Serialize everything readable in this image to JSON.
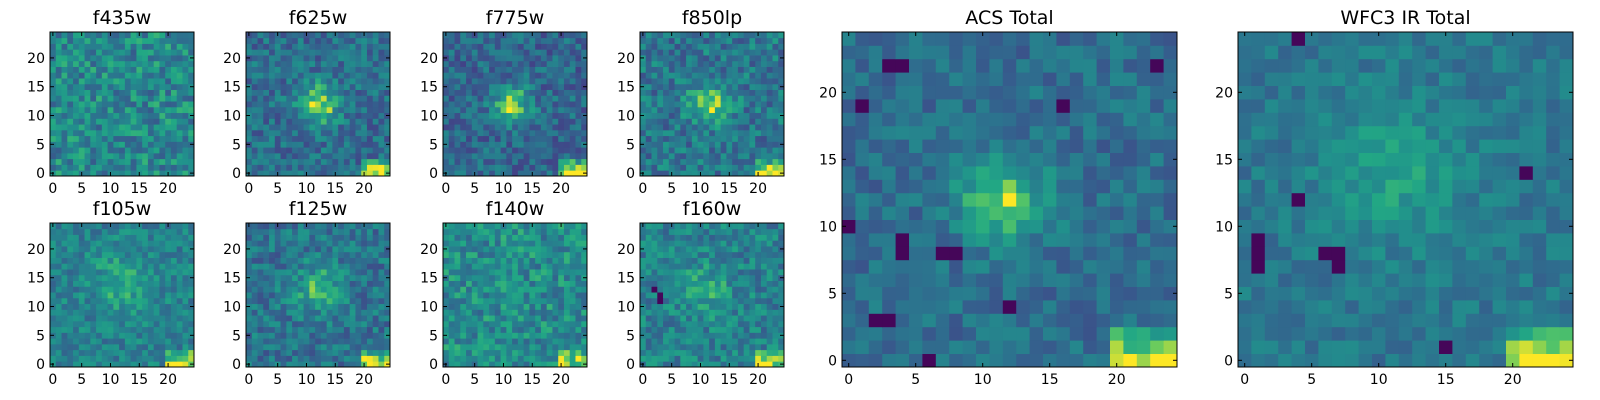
{
  "chart_data": [
    {
      "type": "heatmap",
      "title": "f435w",
      "xticks": [
        0,
        5,
        10,
        15,
        20
      ],
      "yticks": [
        0,
        5,
        10,
        15,
        20
      ],
      "xlim": [
        -0.5,
        24.5
      ],
      "ylim": [
        -0.5,
        24.5
      ],
      "grid_size": 25,
      "colormap": "viridis",
      "features": {
        "noise": 0.22,
        "base": 0.58,
        "blobs": [],
        "dark": [],
        "corner": 0
      }
    },
    {
      "type": "heatmap",
      "title": "f625w",
      "xticks": [
        0,
        5,
        10,
        15,
        20
      ],
      "yticks": [
        0,
        5,
        10,
        15,
        20
      ],
      "xlim": [
        -0.5,
        24.5
      ],
      "ylim": [
        -0.5,
        24.5
      ],
      "grid_size": 25,
      "colormap": "viridis",
      "features": {
        "noise": 0.18,
        "base": 0.45,
        "blobs": [
          [
            12,
            12,
            2.5,
            0.5
          ]
        ],
        "dark": [],
        "corner": 0.55
      }
    },
    {
      "type": "heatmap",
      "title": "f775w",
      "xticks": [
        0,
        5,
        10,
        15,
        20
      ],
      "yticks": [
        0,
        5,
        10,
        15,
        20
      ],
      "xlim": [
        -0.5,
        24.5
      ],
      "ylim": [
        -0.5,
        24.5
      ],
      "grid_size": 25,
      "colormap": "viridis",
      "features": {
        "noise": 0.18,
        "base": 0.42,
        "blobs": [
          [
            11.5,
            12,
            2.2,
            0.5
          ]
        ],
        "dark": [],
        "corner": 0.6
      }
    },
    {
      "type": "heatmap",
      "title": "f850lp",
      "xticks": [
        0,
        5,
        10,
        15,
        20
      ],
      "yticks": [
        0,
        5,
        10,
        15,
        20
      ],
      "xlim": [
        -0.5,
        24.5
      ],
      "ylim": [
        -0.5,
        24.5
      ],
      "grid_size": 25,
      "colormap": "viridis",
      "features": {
        "noise": 0.2,
        "base": 0.5,
        "blobs": [
          [
            11.5,
            12,
            2.5,
            0.35
          ]
        ],
        "dark": [],
        "corner": 0.5
      }
    },
    {
      "type": "heatmap",
      "title": "f105w",
      "xticks": [
        0,
        5,
        10,
        15,
        20
      ],
      "yticks": [
        0,
        5,
        10,
        15,
        20
      ],
      "xlim": [
        -0.5,
        24.5
      ],
      "ylim": [
        -0.5,
        24.5
      ],
      "grid_size": 25,
      "colormap": "viridis",
      "features": {
        "noise": 0.16,
        "base": 0.55,
        "blobs": [
          [
            12,
            14,
            3.5,
            0.2
          ]
        ],
        "dark": [],
        "corner": 0.45
      }
    },
    {
      "type": "heatmap",
      "title": "f125w",
      "xticks": [
        0,
        5,
        10,
        15,
        20
      ],
      "yticks": [
        0,
        5,
        10,
        15,
        20
      ],
      "xlim": [
        -0.5,
        24.5
      ],
      "ylim": [
        -0.5,
        24.5
      ],
      "grid_size": 25,
      "colormap": "viridis",
      "features": {
        "noise": 0.18,
        "base": 0.48,
        "blobs": [
          [
            12,
            13,
            3,
            0.3
          ]
        ],
        "dark": [],
        "corner": 0.5
      }
    },
    {
      "type": "heatmap",
      "title": "f140w",
      "xticks": [
        0,
        5,
        10,
        15,
        20
      ],
      "yticks": [
        0,
        5,
        10,
        15,
        20
      ],
      "xlim": [
        -0.5,
        24.5
      ],
      "ylim": [
        -0.5,
        24.5
      ],
      "grid_size": 25,
      "colormap": "viridis",
      "features": {
        "noise": 0.2,
        "base": 0.6,
        "blobs": [],
        "dark": [],
        "corner": 0.3
      }
    },
    {
      "type": "heatmap",
      "title": "f160w",
      "xticks": [
        0,
        5,
        10,
        15,
        20
      ],
      "yticks": [
        0,
        5,
        10,
        15,
        20
      ],
      "xlim": [
        -0.5,
        24.5
      ],
      "ylim": [
        -0.5,
        24.5
      ],
      "grid_size": 25,
      "colormap": "viridis",
      "features": {
        "noise": 0.18,
        "base": 0.55,
        "blobs": [
          [
            11,
            13,
            3,
            0.2
          ]
        ],
        "dark": [
          [
            2,
            13
          ],
          [
            3,
            12
          ],
          [
            3,
            11
          ]
        ],
        "corner": 0.4
      }
    },
    {
      "type": "heatmap",
      "title": "ACS Total",
      "xticks": [
        0,
        5,
        10,
        15,
        20
      ],
      "yticks": [
        0,
        5,
        10,
        15,
        20
      ],
      "xlim": [
        -0.5,
        24.5
      ],
      "ylim": [
        -0.5,
        24.5
      ],
      "grid_size": 25,
      "colormap": "viridis",
      "features": {
        "noise": 0.13,
        "base": 0.45,
        "blobs": [
          [
            11.5,
            12,
            2.3,
            0.45
          ]
        ],
        "dark": [
          [
            3,
            22
          ],
          [
            4,
            22
          ],
          [
            1,
            19
          ],
          [
            0,
            10
          ],
          [
            4,
            8
          ],
          [
            4,
            9
          ],
          [
            7,
            8
          ],
          [
            8,
            8
          ],
          [
            2,
            3
          ],
          [
            3,
            3
          ],
          [
            6,
            0
          ],
          [
            12,
            4
          ],
          [
            16,
            19
          ],
          [
            23,
            22
          ]
        ],
        "corner": 0.55
      }
    },
    {
      "type": "heatmap",
      "title": "WFC3 IR Total",
      "xticks": [
        0,
        5,
        10,
        15,
        20
      ],
      "yticks": [
        0,
        5,
        10,
        15,
        20
      ],
      "xlim": [
        -0.5,
        24.5
      ],
      "ylim": [
        -0.5,
        24.5
      ],
      "grid_size": 25,
      "colormap": "viridis",
      "features": {
        "noise": 0.11,
        "base": 0.5,
        "blobs": [
          [
            11,
            14,
            3.5,
            0.22
          ]
        ],
        "dark": [
          [
            1,
            8
          ],
          [
            1,
            9
          ],
          [
            1,
            7
          ],
          [
            6,
            8
          ],
          [
            7,
            8
          ],
          [
            7,
            7
          ],
          [
            4,
            12
          ],
          [
            15,
            1
          ],
          [
            21,
            14
          ],
          [
            4,
            24
          ]
        ],
        "corner": 0.5
      }
    }
  ]
}
